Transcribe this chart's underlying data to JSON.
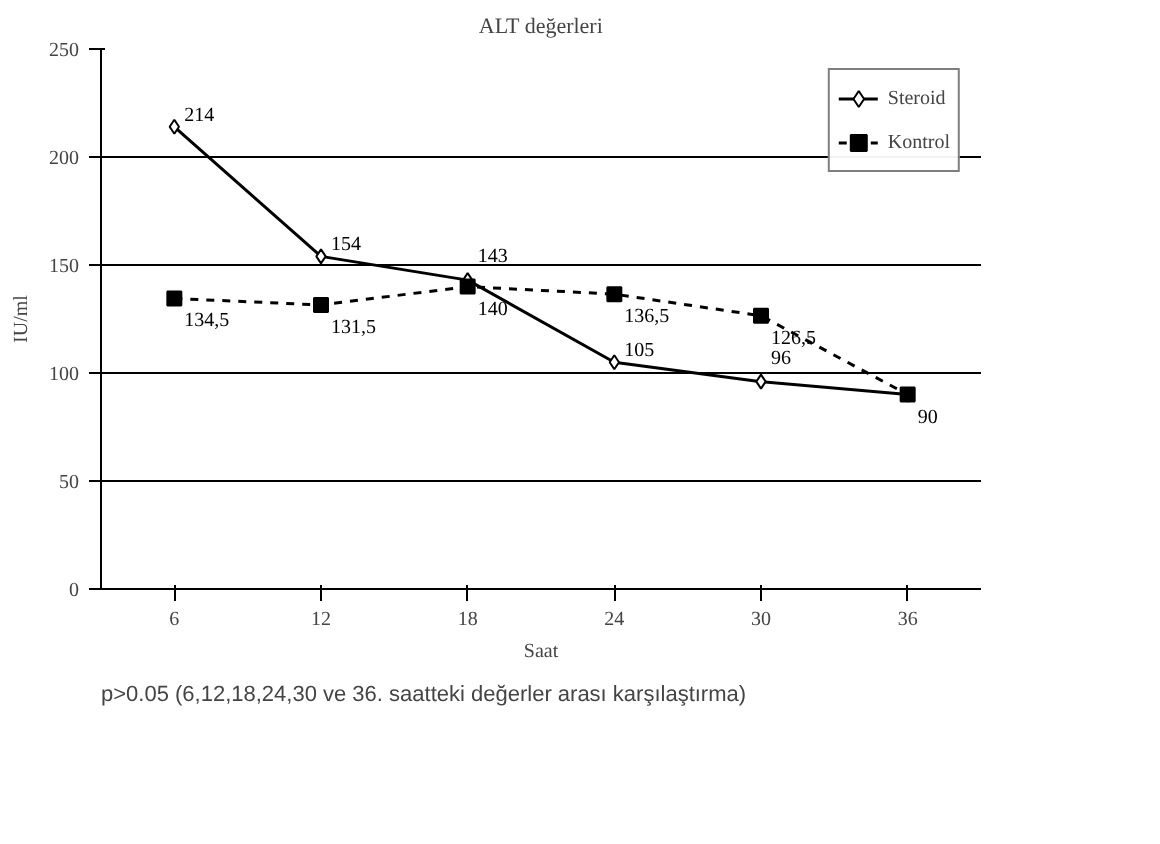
{
  "chart_data": {
    "type": "line",
    "title": "ALT değerleri",
    "xlabel": "Saat",
    "ylabel": "IU/ml",
    "categories": [
      "6",
      "12",
      "18",
      "24",
      "30",
      "36"
    ],
    "series": [
      {
        "name": "Steroid",
        "color": "#000000",
        "values": [
          214,
          154,
          143,
          105,
          96,
          90
        ],
        "marker": "diamond",
        "line_style": "solid",
        "value_labels": [
          "214",
          "154",
          "143",
          "105",
          "96",
          "90"
        ]
      },
      {
        "name": "Kontrol",
        "color": "#000000",
        "values": [
          134.5,
          131.5,
          140,
          136.5,
          126.5,
          90
        ],
        "marker": "square",
        "line_style": "dashed",
        "value_labels": [
          "134,5",
          "131,5",
          "140",
          "136,5",
          "126,5",
          null
        ]
      }
    ],
    "ylim": [
      0,
      250
    ],
    "yticks": [
      0,
      50,
      100,
      150,
      200,
      250
    ],
    "grid": "y",
    "legend": "top right",
    "annotations": [
      "p>0.05 (6,12,18,24,30 ve 36. saatteki değerler arası karşılaştırma)"
    ]
  }
}
